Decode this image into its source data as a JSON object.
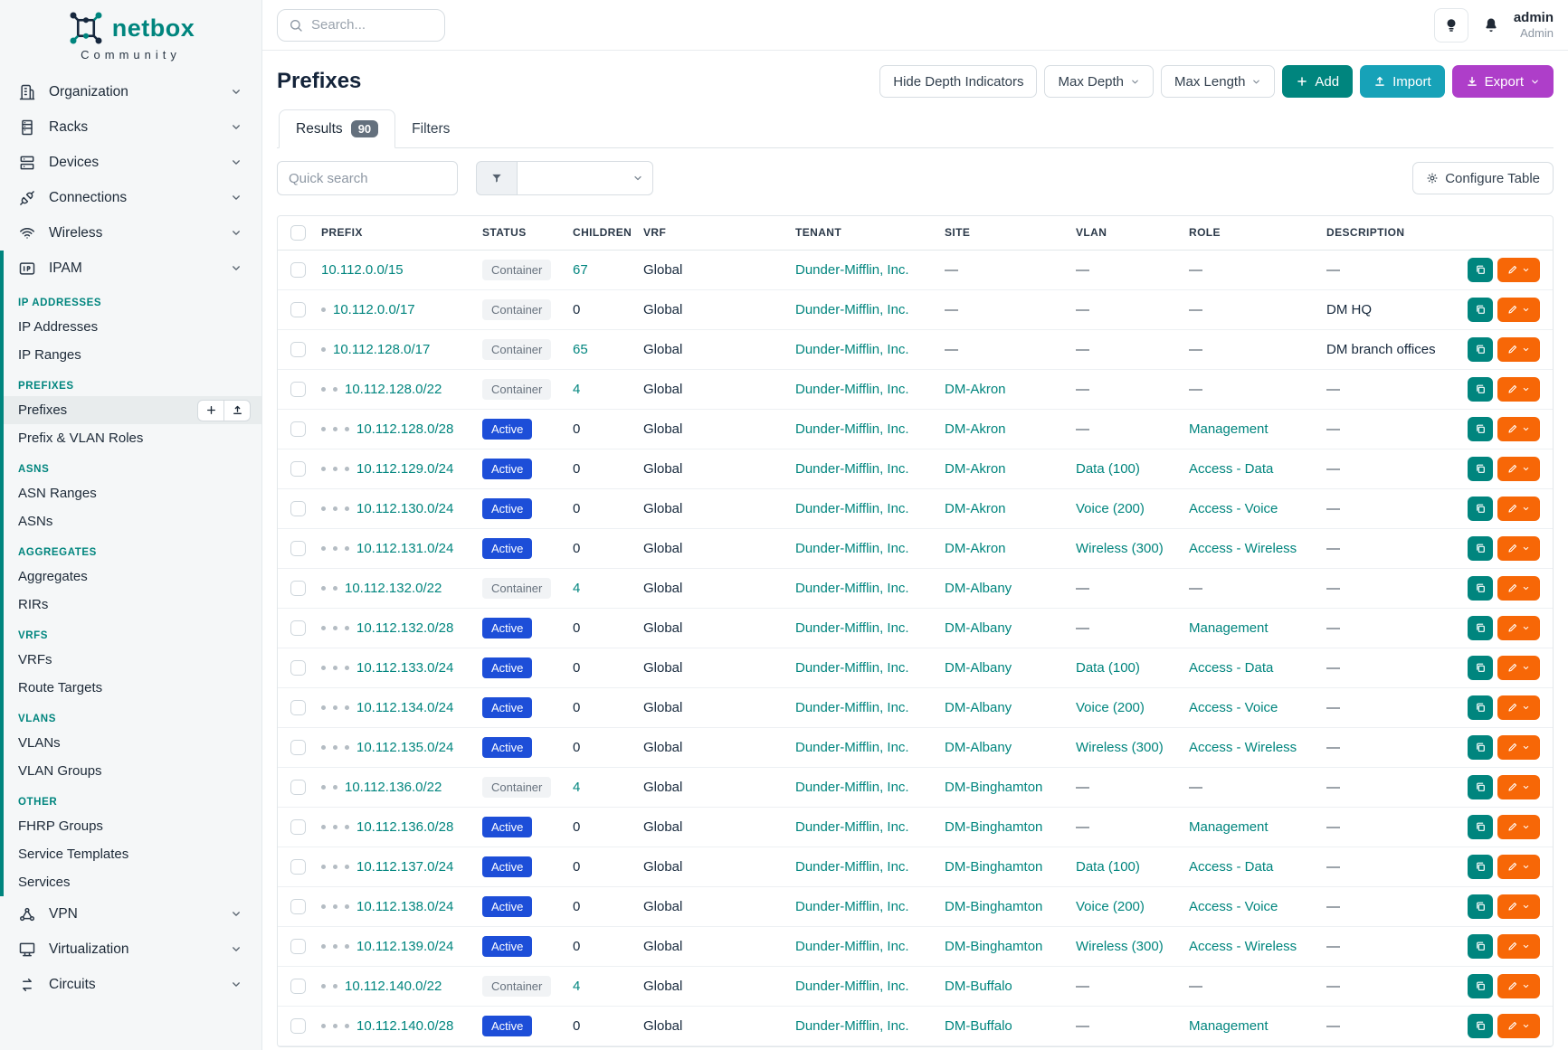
{
  "brand": {
    "name": "netbox",
    "tagline": "Community"
  },
  "topbar": {
    "search_placeholder": "Search...",
    "user": {
      "name": "admin",
      "role": "Admin"
    }
  },
  "sidebar": {
    "items_top": [
      {
        "label": "Organization",
        "icon": "building-icon"
      },
      {
        "label": "Racks",
        "icon": "rack-icon"
      },
      {
        "label": "Devices",
        "icon": "server-icon"
      },
      {
        "label": "Connections",
        "icon": "plug-icon"
      },
      {
        "label": "Wireless",
        "icon": "wifi-icon"
      }
    ],
    "ipam": {
      "label": "IPAM",
      "icon": "ipam-icon",
      "sections": [
        {
          "header": "IP ADDRESSES",
          "items": [
            {
              "label": "IP Addresses"
            },
            {
              "label": "IP Ranges"
            }
          ]
        },
        {
          "header": "PREFIXES",
          "items": [
            {
              "label": "Prefixes",
              "active": true,
              "buttons": [
                {
                  "name": "add-prefix-button",
                  "icon": "plus-icon"
                },
                {
                  "name": "import-prefix-button",
                  "icon": "upload-icon"
                }
              ]
            },
            {
              "label": "Prefix & VLAN Roles"
            }
          ]
        },
        {
          "header": "ASNS",
          "items": [
            {
              "label": "ASN Ranges"
            },
            {
              "label": "ASNs"
            }
          ]
        },
        {
          "header": "AGGREGATES",
          "items": [
            {
              "label": "Aggregates"
            },
            {
              "label": "RIRs"
            }
          ]
        },
        {
          "header": "VRFS",
          "items": [
            {
              "label": "VRFs"
            },
            {
              "label": "Route Targets"
            }
          ]
        },
        {
          "header": "VLANS",
          "items": [
            {
              "label": "VLANs"
            },
            {
              "label": "VLAN Groups"
            }
          ]
        },
        {
          "header": "OTHER",
          "items": [
            {
              "label": "FHRP Groups"
            },
            {
              "label": "Service Templates"
            },
            {
              "label": "Services"
            }
          ]
        }
      ]
    },
    "items_bottom": [
      {
        "label": "VPN",
        "icon": "vpn-icon"
      },
      {
        "label": "Virtualization",
        "icon": "monitor-icon"
      },
      {
        "label": "Circuits",
        "icon": "circuits-icon"
      }
    ]
  },
  "page": {
    "title": "Prefixes",
    "actions": {
      "hide_depth_label": "Hide Depth Indicators",
      "max_depth_label": "Max Depth",
      "max_length_label": "Max Length",
      "add_label": "Add",
      "import_label": "Import",
      "export_label": "Export"
    }
  },
  "tabs": {
    "results_label": "Results",
    "results_count": "90",
    "filters_label": "Filters"
  },
  "toolbar": {
    "quick_search_placeholder": "Quick search",
    "configure_table_label": "Configure Table"
  },
  "table": {
    "columns": [
      "PREFIX",
      "STATUS",
      "CHILDREN",
      "VRF",
      "TENANT",
      "SITE",
      "VLAN",
      "ROLE",
      "DESCRIPTION"
    ],
    "rows": [
      {
        "depth": 0,
        "prefix": "10.112.0.0/15",
        "status": "Container",
        "children": "67",
        "vrf": "Global",
        "tenant": "Dunder-Mifflin, Inc.",
        "site": "—",
        "vlan": "—",
        "role": "—",
        "description": "—"
      },
      {
        "depth": 1,
        "prefix": "10.112.0.0/17",
        "status": "Container",
        "children": "0",
        "vrf": "Global",
        "tenant": "Dunder-Mifflin, Inc.",
        "site": "—",
        "vlan": "—",
        "role": "—",
        "description": "DM HQ"
      },
      {
        "depth": 1,
        "prefix": "10.112.128.0/17",
        "status": "Container",
        "children": "65",
        "vrf": "Global",
        "tenant": "Dunder-Mifflin, Inc.",
        "site": "—",
        "vlan": "—",
        "role": "—",
        "description": "DM branch offices"
      },
      {
        "depth": 2,
        "prefix": "10.112.128.0/22",
        "status": "Container",
        "children": "4",
        "vrf": "Global",
        "tenant": "Dunder-Mifflin, Inc.",
        "site": "DM-Akron",
        "vlan": "—",
        "role": "—",
        "description": "—"
      },
      {
        "depth": 3,
        "prefix": "10.112.128.0/28",
        "status": "Active",
        "children": "0",
        "vrf": "Global",
        "tenant": "Dunder-Mifflin, Inc.",
        "site": "DM-Akron",
        "vlan": "—",
        "role": "Management",
        "description": "—"
      },
      {
        "depth": 3,
        "prefix": "10.112.129.0/24",
        "status": "Active",
        "children": "0",
        "vrf": "Global",
        "tenant": "Dunder-Mifflin, Inc.",
        "site": "DM-Akron",
        "vlan": "Data (100)",
        "role": "Access - Data",
        "description": "—"
      },
      {
        "depth": 3,
        "prefix": "10.112.130.0/24",
        "status": "Active",
        "children": "0",
        "vrf": "Global",
        "tenant": "Dunder-Mifflin, Inc.",
        "site": "DM-Akron",
        "vlan": "Voice (200)",
        "role": "Access - Voice",
        "description": "—"
      },
      {
        "depth": 3,
        "prefix": "10.112.131.0/24",
        "status": "Active",
        "children": "0",
        "vrf": "Global",
        "tenant": "Dunder-Mifflin, Inc.",
        "site": "DM-Akron",
        "vlan": "Wireless (300)",
        "role": "Access - Wireless",
        "description": "—"
      },
      {
        "depth": 2,
        "prefix": "10.112.132.0/22",
        "status": "Container",
        "children": "4",
        "vrf": "Global",
        "tenant": "Dunder-Mifflin, Inc.",
        "site": "DM-Albany",
        "vlan": "—",
        "role": "—",
        "description": "—"
      },
      {
        "depth": 3,
        "prefix": "10.112.132.0/28",
        "status": "Active",
        "children": "0",
        "vrf": "Global",
        "tenant": "Dunder-Mifflin, Inc.",
        "site": "DM-Albany",
        "vlan": "—",
        "role": "Management",
        "description": "—"
      },
      {
        "depth": 3,
        "prefix": "10.112.133.0/24",
        "status": "Active",
        "children": "0",
        "vrf": "Global",
        "tenant": "Dunder-Mifflin, Inc.",
        "site": "DM-Albany",
        "vlan": "Data (100)",
        "role": "Access - Data",
        "description": "—"
      },
      {
        "depth": 3,
        "prefix": "10.112.134.0/24",
        "status": "Active",
        "children": "0",
        "vrf": "Global",
        "tenant": "Dunder-Mifflin, Inc.",
        "site": "DM-Albany",
        "vlan": "Voice (200)",
        "role": "Access - Voice",
        "description": "—"
      },
      {
        "depth": 3,
        "prefix": "10.112.135.0/24",
        "status": "Active",
        "children": "0",
        "vrf": "Global",
        "tenant": "Dunder-Mifflin, Inc.",
        "site": "DM-Albany",
        "vlan": "Wireless (300)",
        "role": "Access - Wireless",
        "description": "—"
      },
      {
        "depth": 2,
        "prefix": "10.112.136.0/22",
        "status": "Container",
        "children": "4",
        "vrf": "Global",
        "tenant": "Dunder-Mifflin, Inc.",
        "site": "DM-Binghamton",
        "vlan": "—",
        "role": "—",
        "description": "—"
      },
      {
        "depth": 3,
        "prefix": "10.112.136.0/28",
        "status": "Active",
        "children": "0",
        "vrf": "Global",
        "tenant": "Dunder-Mifflin, Inc.",
        "site": "DM-Binghamton",
        "vlan": "—",
        "role": "Management",
        "description": "—"
      },
      {
        "depth": 3,
        "prefix": "10.112.137.0/24",
        "status": "Active",
        "children": "0",
        "vrf": "Global",
        "tenant": "Dunder-Mifflin, Inc.",
        "site": "DM-Binghamton",
        "vlan": "Data (100)",
        "role": "Access - Data",
        "description": "—"
      },
      {
        "depth": 3,
        "prefix": "10.112.138.0/24",
        "status": "Active",
        "children": "0",
        "vrf": "Global",
        "tenant": "Dunder-Mifflin, Inc.",
        "site": "DM-Binghamton",
        "vlan": "Voice (200)",
        "role": "Access - Voice",
        "description": "—"
      },
      {
        "depth": 3,
        "prefix": "10.112.139.0/24",
        "status": "Active",
        "children": "0",
        "vrf": "Global",
        "tenant": "Dunder-Mifflin, Inc.",
        "site": "DM-Binghamton",
        "vlan": "Wireless (300)",
        "role": "Access - Wireless",
        "description": "—"
      },
      {
        "depth": 2,
        "prefix": "10.112.140.0/22",
        "status": "Container",
        "children": "4",
        "vrf": "Global",
        "tenant": "Dunder-Mifflin, Inc.",
        "site": "DM-Buffalo",
        "vlan": "—",
        "role": "—",
        "description": "—"
      },
      {
        "depth": 3,
        "prefix": "10.112.140.0/28",
        "status": "Active",
        "children": "0",
        "vrf": "Global",
        "tenant": "Dunder-Mifflin, Inc.",
        "site": "DM-Buffalo",
        "vlan": "—",
        "role": "Management",
        "description": "—"
      }
    ]
  },
  "colors": {
    "accent_teal": "#00857e",
    "active_badge_blue": "#1d4ed8",
    "import_cyan": "#17a2b8",
    "export_purple": "#ae3ec9",
    "edit_orange": "#f76707",
    "count_badge_gray": "#64707d"
  }
}
